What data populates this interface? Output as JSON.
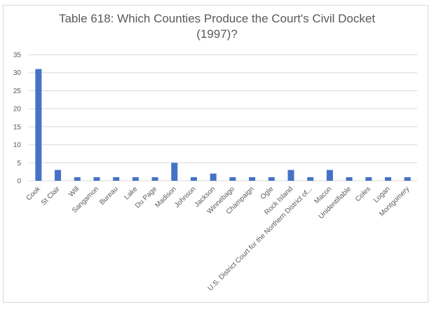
{
  "chart_data": {
    "type": "bar",
    "title": "Table 618: Which Counties Produce the Court's Civil Docket (1997)?",
    "title_lines": [
      "Table 618: Which Counties Produce the Court's Civil Docket",
      "(1997)?"
    ],
    "categories": [
      "Cook",
      "St Clair",
      "Will",
      "Sangamon",
      "Bureau",
      "Lake",
      "Du Page",
      "Madison",
      "Johnson",
      "Jackson",
      "Winnebago",
      "Champaign",
      "Ogle",
      "Rock Island",
      "U.S. District Court for the Northern District of...",
      "Macon",
      "Unidentifiable",
      "Coles",
      "Logan",
      "Montgomery"
    ],
    "values": [
      31,
      3,
      1,
      1,
      1,
      1,
      1,
      5,
      1,
      2,
      1,
      1,
      1,
      3,
      1,
      3,
      1,
      1,
      1,
      1
    ],
    "ylim": [
      0,
      35
    ],
    "yticks": [
      0,
      5,
      10,
      15,
      20,
      25,
      30,
      35
    ],
    "xlabel": "",
    "ylabel": "",
    "grid": true,
    "legend": "none",
    "bar_color": "#4472c4",
    "grid_color": "#d9d9d9",
    "text_color": "#595959"
  }
}
